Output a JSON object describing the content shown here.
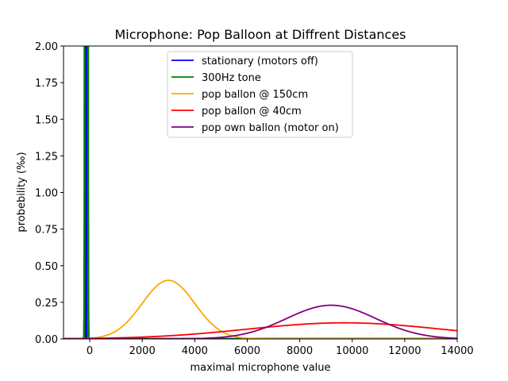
{
  "chart_data": {
    "type": "line",
    "title": "Microphone: Pop Balloon at Diffrent Distances",
    "xlabel": "maximal microphone value",
    "ylabel": "probebility (‰)",
    "xlim": [
      -1000,
      14000
    ],
    "ylim": [
      0,
      2.0
    ],
    "xticks": [
      0,
      2000,
      4000,
      6000,
      8000,
      10000,
      12000,
      14000
    ],
    "xtick_labels": [
      "0",
      "2000",
      "4000",
      "6000",
      "8000",
      "10000",
      "12000",
      "14000"
    ],
    "yticks": [
      0,
      0.25,
      0.5,
      0.75,
      1.0,
      1.25,
      1.5,
      1.75,
      2.0
    ],
    "ytick_labels": [
      "0.00",
      "0.25",
      "0.50",
      "0.75",
      "1.00",
      "1.25",
      "1.50",
      "1.75",
      "2.00"
    ],
    "grid": false,
    "legend_position": "top-center",
    "series": [
      {
        "name": "stationary (motors off)",
        "color": "#0000ff",
        "shape": "gaussian",
        "mean": -150,
        "std": 5,
        "peak": 1000
      },
      {
        "name": "300Hz tone",
        "color": "#008000",
        "shape": "gaussian",
        "mean": -130,
        "std": 20,
        "peak": 500
      },
      {
        "name": "pop ballon @ 150cm",
        "color": "#ffa500",
        "shape": "gaussian",
        "mean": 3000,
        "std": 1000,
        "peak": 0.4
      },
      {
        "name": "pop ballon @ 40cm",
        "color": "#ff0000",
        "shape": "gaussian",
        "mean": 9700,
        "std": 3700,
        "peak": 0.11
      },
      {
        "name": "pop own ballon (motor on)",
        "color": "#800080",
        "shape": "gaussian",
        "mean": 9200,
        "std": 1700,
        "peak": 0.23
      }
    ]
  }
}
